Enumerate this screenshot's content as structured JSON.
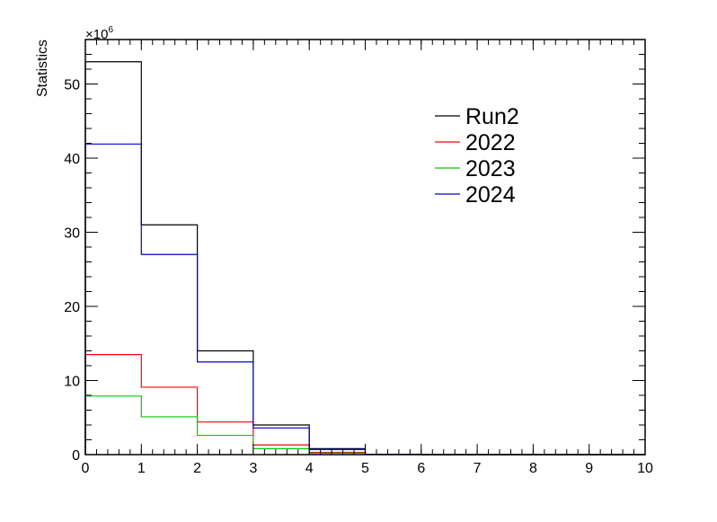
{
  "chart_data": {
    "type": "histogram",
    "ylabel": "Statistics",
    "y_exponent_label": "×10",
    "y_exponent_power": "6",
    "bin_edges": [
      0,
      1,
      2,
      3,
      4,
      5,
      6,
      7,
      8,
      9,
      10
    ],
    "xlim": [
      0,
      10
    ],
    "ylim": [
      0,
      56
    ],
    "x_ticks": [
      0,
      1,
      2,
      3,
      4,
      5,
      6,
      7,
      8,
      9,
      10
    ],
    "x_tick_labels": [
      "0",
      "1",
      "2",
      "3",
      "4",
      "5",
      "6",
      "7",
      "8",
      "9",
      "10"
    ],
    "y_ticks": [
      0,
      10,
      20,
      30,
      40,
      50
    ],
    "y_tick_labels": [
      "0",
      "10",
      "20",
      "30",
      "40",
      "50"
    ],
    "grid": false,
    "legend_position": "upper-right",
    "series": [
      {
        "name": "Run2",
        "color": "#000000",
        "values": [
          53.0,
          31.0,
          14.0,
          4.0,
          0.8,
          0.05,
          0,
          0,
          0,
          0
        ]
      },
      {
        "name": "2022",
        "color": "#ff0000",
        "values": [
          13.5,
          9.1,
          4.4,
          1.3,
          0.3,
          0.02,
          0,
          0,
          0,
          0
        ]
      },
      {
        "name": "2023",
        "color": "#00cc00",
        "values": [
          7.9,
          5.1,
          2.6,
          0.8,
          0.2,
          0.01,
          0,
          0,
          0,
          0
        ]
      },
      {
        "name": "2024",
        "color": "#0000cc",
        "values": [
          41.9,
          27.0,
          12.5,
          3.6,
          0.7,
          0.04,
          0,
          0,
          0,
          0
        ]
      }
    ]
  }
}
